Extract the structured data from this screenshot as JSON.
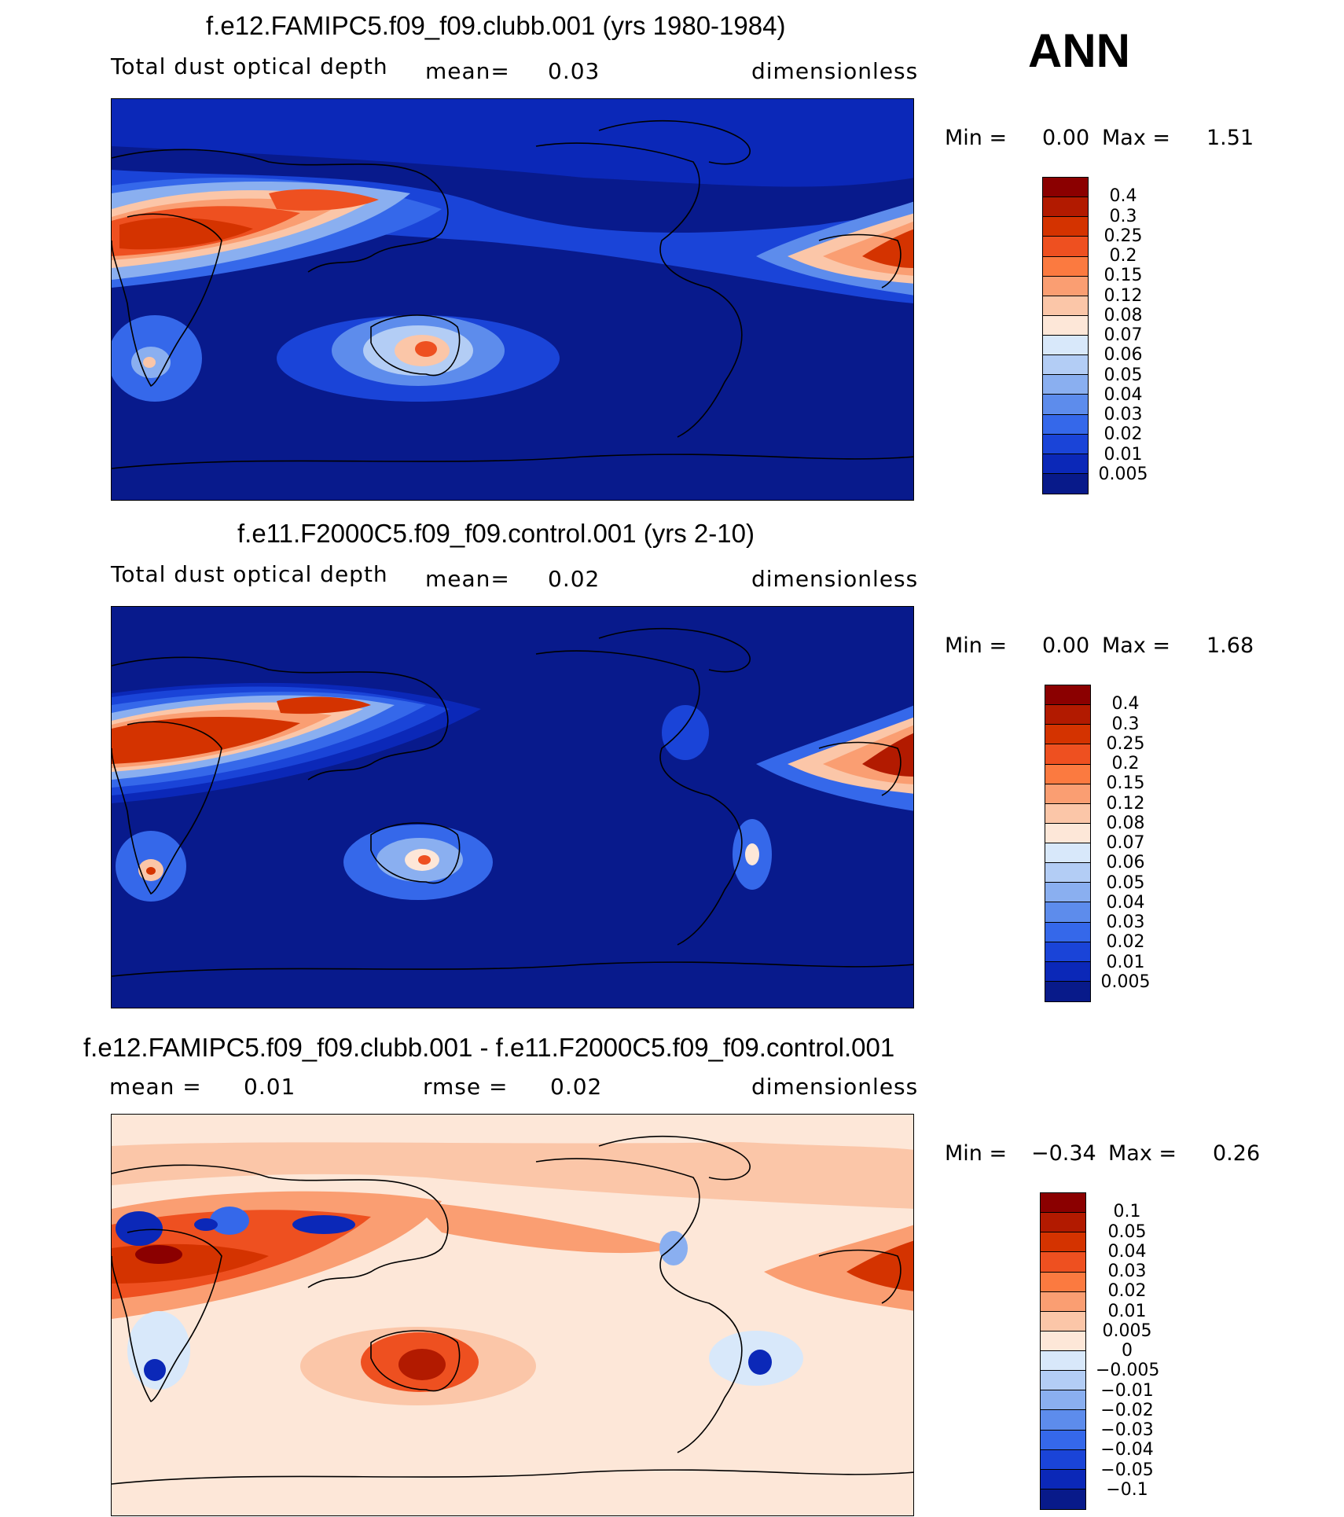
{
  "season": "ANN",
  "panels": [
    {
      "id": "test",
      "title": "f.e12.FAMIPC5.f09_f09.clubb.001 (yrs 1980-1984)",
      "variable": "Total dust optical depth",
      "stat1": "mean=",
      "stat1_value": "0.03",
      "units": "dimensionless",
      "min_label": "Min =",
      "min_value": "0.00",
      "max_label": "Max =",
      "max_value": "1.51",
      "background": "#0a1a8c",
      "levels": [
        "0.4",
        "0.3",
        "0.25",
        "0.2",
        "0.15",
        "0.12",
        "0.08",
        "0.07",
        "0.06",
        "0.05",
        "0.04",
        "0.03",
        "0.02",
        "0.01",
        "0.005"
      ],
      "colors": [
        "#8b0000",
        "#b21a00",
        "#d43300",
        "#ee5020",
        "#fb7a40",
        "#fa9e72",
        "#fbc6a8",
        "#fde7d8",
        "#d8e8fa",
        "#b3cdf5",
        "#8aaff0",
        "#5d8cec",
        "#3568ea",
        "#1a44d8",
        "#0b28b8",
        "#081a8a"
      ]
    },
    {
      "id": "control",
      "title": "f.e11.F2000C5.f09_f09.control.001 (yrs 2-10)",
      "variable": "Total dust optical depth",
      "stat1": "mean=",
      "stat1_value": "0.02",
      "units": "dimensionless",
      "min_label": "Min =",
      "min_value": "0.00",
      "max_label": "Max =",
      "max_value": "1.68",
      "background": "#0a1a8c",
      "levels": [
        "0.4",
        "0.3",
        "0.25",
        "0.2",
        "0.15",
        "0.12",
        "0.08",
        "0.07",
        "0.06",
        "0.05",
        "0.04",
        "0.03",
        "0.02",
        "0.01",
        "0.005"
      ],
      "colors": [
        "#8b0000",
        "#b21a00",
        "#d43300",
        "#ee5020",
        "#fb7a40",
        "#fa9e72",
        "#fbc6a8",
        "#fde7d8",
        "#d8e8fa",
        "#b3cdf5",
        "#8aaff0",
        "#5d8cec",
        "#3568ea",
        "#1a44d8",
        "#0b28b8",
        "#081a8a"
      ]
    },
    {
      "id": "diff",
      "title": "f.e12.FAMIPC5.f09_f09.clubb.001 - f.e11.F2000C5.f09_f09.control.001",
      "stat1": "mean =",
      "stat1_value": "0.01",
      "stat2": "rmse =",
      "stat2_value": "0.02",
      "units": "dimensionless",
      "min_label": "Min =",
      "min_value": "−0.34",
      "max_label": "Max =",
      "max_value": "0.26",
      "background": "#fde7d8",
      "levels": [
        "0.1",
        "0.05",
        "0.04",
        "0.03",
        "0.02",
        "0.01",
        "0.005",
        "0",
        "−0.005",
        "−0.01",
        "−0.02",
        "−0.03",
        "−0.04",
        "−0.05",
        "−0.1"
      ],
      "colors": [
        "#8b0000",
        "#b21a00",
        "#d43300",
        "#ee5020",
        "#fb7a40",
        "#fa9e72",
        "#fbc6a8",
        "#fde7d8",
        "#d8e8fa",
        "#b3cdf5",
        "#8aaff0",
        "#5d8cec",
        "#3568ea",
        "#1a44d8",
        "#0b28b8",
        "#081a8a"
      ]
    }
  ]
}
